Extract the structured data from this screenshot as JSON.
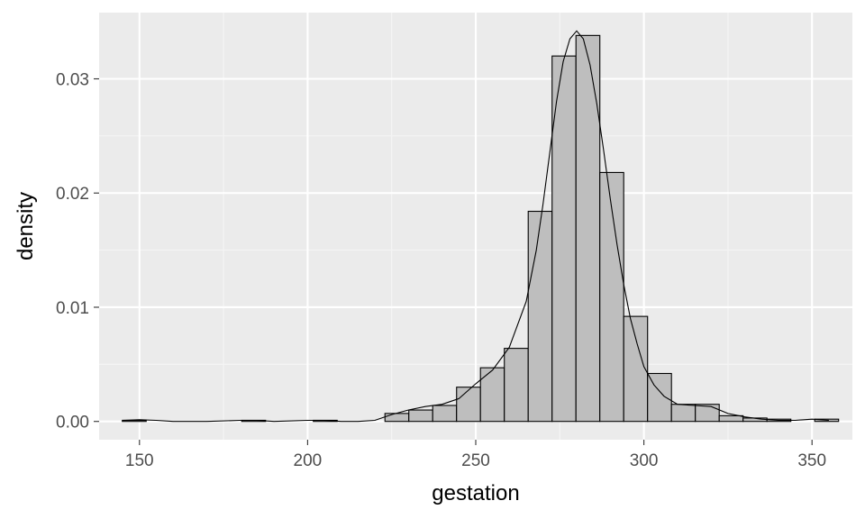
{
  "chart_data": {
    "type": "histogram",
    "xlabel": "gestation",
    "ylabel": "density",
    "xlim": [
      138,
      362
    ],
    "ylim": [
      -0.0016,
      0.0358
    ],
    "x_ticks": [
      150,
      200,
      250,
      300,
      350
    ],
    "x_minor_ticks": [
      175,
      225,
      275,
      325
    ],
    "y_ticks": [
      0.0,
      0.01,
      0.02,
      0.03
    ],
    "y_minor_ticks": [
      0.005,
      0.015,
      0.025
    ],
    "x_tick_labels": [
      "150",
      "200",
      "250",
      "300",
      "350"
    ],
    "y_tick_labels": [
      "0.00",
      "0.01",
      "0.02",
      "0.03"
    ],
    "grid": true,
    "colors": {
      "panel_background": "#ebebeb",
      "grid_major": "#ffffff",
      "grid_minor": "#f5f5f5",
      "bar_fill": "#bebebe",
      "bar_outline": "#000000",
      "density_line": "#000000"
    },
    "histogram": {
      "bin_width": 7.1,
      "bins": [
        {
          "x0": 144.9,
          "x1": 152.0,
          "density": 0.0001
        },
        {
          "x0": 152.0,
          "x1": 159.1,
          "density": 0.0
        },
        {
          "x0": 159.1,
          "x1": 166.2,
          "density": 0.0
        },
        {
          "x0": 166.2,
          "x1": 173.3,
          "density": 0.0
        },
        {
          "x0": 173.3,
          "x1": 180.4,
          "density": 0.0
        },
        {
          "x0": 180.4,
          "x1": 187.5,
          "density": 0.0001
        },
        {
          "x0": 187.5,
          "x1": 194.6,
          "density": 0.0
        },
        {
          "x0": 194.6,
          "x1": 201.7,
          "density": 0.0
        },
        {
          "x0": 201.7,
          "x1": 208.8,
          "density": 0.0001
        },
        {
          "x0": 208.8,
          "x1": 215.9,
          "density": 0.0
        },
        {
          "x0": 215.9,
          "x1": 223.0,
          "density": 0.0
        },
        {
          "x0": 223.0,
          "x1": 230.1,
          "density": 0.0007
        },
        {
          "x0": 230.1,
          "x1": 237.2,
          "density": 0.001
        },
        {
          "x0": 237.2,
          "x1": 244.3,
          "density": 0.0014
        },
        {
          "x0": 244.3,
          "x1": 251.4,
          "density": 0.003
        },
        {
          "x0": 251.4,
          "x1": 258.5,
          "density": 0.0047
        },
        {
          "x0": 258.5,
          "x1": 265.6,
          "density": 0.0064
        },
        {
          "x0": 265.6,
          "x1": 272.7,
          "density": 0.0184
        },
        {
          "x0": 272.7,
          "x1": 279.8,
          "density": 0.032
        },
        {
          "x0": 279.8,
          "x1": 286.9,
          "density": 0.0338
        },
        {
          "x0": 286.9,
          "x1": 294.0,
          "density": 0.0218
        },
        {
          "x0": 294.0,
          "x1": 301.1,
          "density": 0.0092
        },
        {
          "x0": 301.1,
          "x1": 308.2,
          "density": 0.0042
        },
        {
          "x0": 308.2,
          "x1": 315.3,
          "density": 0.0015
        },
        {
          "x0": 315.3,
          "x1": 322.4,
          "density": 0.0015
        },
        {
          "x0": 322.4,
          "x1": 329.5,
          "density": 0.0005
        },
        {
          "x0": 329.5,
          "x1": 336.6,
          "density": 0.0003
        },
        {
          "x0": 336.6,
          "x1": 343.7,
          "density": 0.0002
        },
        {
          "x0": 343.7,
          "x1": 350.8,
          "density": 0.0
        },
        {
          "x0": 350.8,
          "x1": 357.9,
          "density": 0.0002
        }
      ]
    },
    "density_curve": {
      "x": [
        145,
        150,
        155,
        160,
        170,
        180,
        185,
        190,
        200,
        205,
        210,
        215,
        220,
        225,
        230,
        235,
        240,
        245,
        250,
        255,
        260,
        265,
        268,
        270,
        272,
        274,
        276,
        278,
        280,
        282,
        284,
        286,
        288,
        290,
        292,
        294,
        296,
        298,
        300,
        303,
        306,
        310,
        315,
        320,
        325,
        330,
        335,
        340,
        345,
        350,
        355
      ],
      "y": [
        0.0001,
        0.00015,
        0.0001,
        0.0,
        0.0,
        0.0001,
        0.0001,
        0.0,
        0.0001,
        0.0001,
        0.0,
        0.0,
        0.0001,
        0.0006,
        0.001,
        0.0013,
        0.0015,
        0.002,
        0.0033,
        0.0045,
        0.0065,
        0.0105,
        0.015,
        0.019,
        0.0235,
        0.028,
        0.0315,
        0.0335,
        0.0342,
        0.0335,
        0.0312,
        0.0278,
        0.0238,
        0.0195,
        0.0155,
        0.012,
        0.009,
        0.0068,
        0.0048,
        0.0032,
        0.0022,
        0.0015,
        0.0014,
        0.0013,
        0.0007,
        0.0004,
        0.0002,
        0.0001,
        0.0001,
        0.0002,
        0.0001
      ]
    }
  }
}
